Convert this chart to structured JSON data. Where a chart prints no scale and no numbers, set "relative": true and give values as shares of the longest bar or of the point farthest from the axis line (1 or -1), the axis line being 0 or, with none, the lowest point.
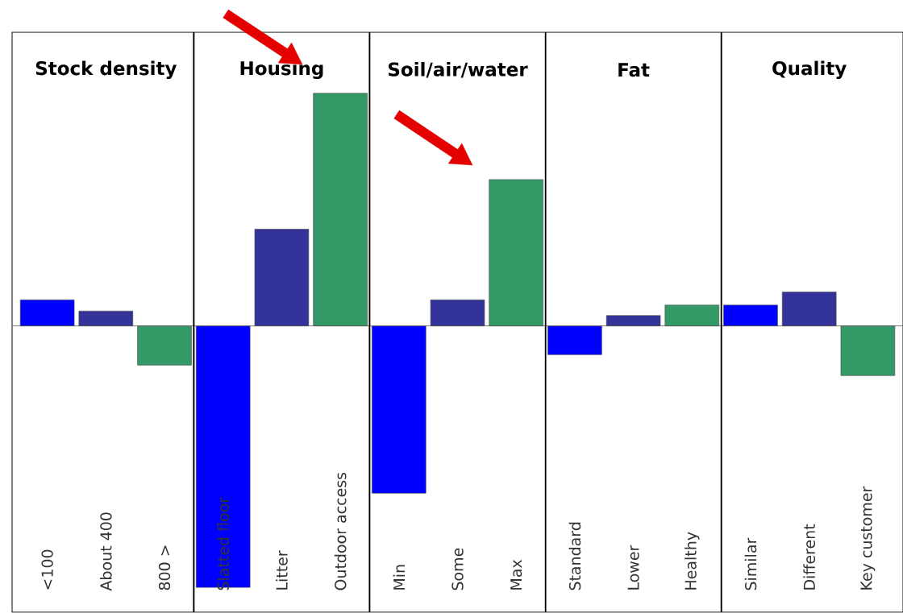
{
  "chart_data": {
    "type": "bar",
    "relative": true,
    "categories": [
      "<100",
      "About 400",
      "800 >",
      "Slatted floor",
      "Litter",
      "Outdoor access",
      "Min",
      "Some",
      "Max",
      "Standard",
      "Lower",
      "Healthy",
      "Similar",
      "Different",
      "Key customer"
    ],
    "values": [
      0.1,
      0.057,
      -0.15,
      -1,
      0.37,
      0.89,
      -0.64,
      0.1,
      0.56,
      -0.11,
      0.04,
      0.08,
      0.08,
      0.13,
      -0.19
    ],
    "colors": [
      "#0000ff",
      "#333399",
      "#339966",
      "#0000ff",
      "#333399",
      "#339966",
      "#0000ff",
      "#333399",
      "#339966",
      "#0000ff",
      "#333399",
      "#339966",
      "#0000ff",
      "#333399",
      "#339966"
    ],
    "annotations": [
      "Stock density",
      "Housing",
      "Soil/air/water",
      "Fat",
      "Quality"
    ]
  }
}
